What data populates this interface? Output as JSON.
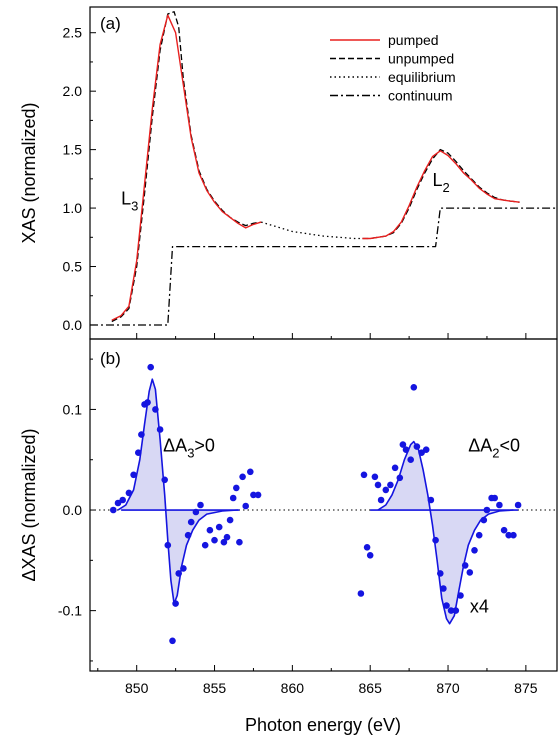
{
  "chart_data": [
    {
      "panel": "(a)",
      "type": "line",
      "xlim": [
        847,
        877
      ],
      "ylim": [
        -0.12,
        2.72
      ],
      "yticks": [
        0.0,
        0.5,
        1.0,
        1.5,
        2.0,
        2.5
      ],
      "ylabel": "XAS (normalized)",
      "legend": {
        "placement": "top-right",
        "entries": [
          {
            "label": "pumped",
            "style": "solid",
            "color": "#e8201f"
          },
          {
            "label": "unpumped",
            "style": "dashed",
            "color": "#000000"
          },
          {
            "label": "equilibrium",
            "style": "dotted",
            "color": "#000000"
          },
          {
            "label": "continuum",
            "style": "dashdot",
            "color": "#000000"
          }
        ]
      },
      "annotations": [
        {
          "base": "L",
          "sub": "3",
          "x": 849.0,
          "y": 1.03
        },
        {
          "base": "L",
          "sub": "2",
          "x": 869.0,
          "y": 1.19
        }
      ],
      "series": [
        {
          "name": "pumped",
          "style": "solid",
          "color": "#e8201f",
          "segments": [
            [
              [
                848.4,
                0.04
              ],
              [
                849.0,
                0.08
              ],
              [
                849.5,
                0.16
              ],
              [
                850.0,
                0.55
              ],
              [
                850.5,
                1.2
              ],
              [
                851.0,
                1.85
              ],
              [
                851.5,
                2.4
              ],
              [
                852.0,
                2.65
              ],
              [
                852.5,
                2.5
              ],
              [
                853.0,
                2.05
              ],
              [
                853.5,
                1.6
              ],
              [
                854.0,
                1.3
              ],
              [
                854.5,
                1.15
              ],
              [
                855.0,
                1.05
              ],
              [
                855.5,
                0.97
              ],
              [
                856.0,
                0.92
              ],
              [
                856.5,
                0.87
              ],
              [
                857.0,
                0.83
              ],
              [
                857.5,
                0.86
              ],
              [
                858.0,
                0.88
              ]
            ],
            [
              [
                864.5,
                0.74
              ],
              [
                865.0,
                0.74
              ],
              [
                866.0,
                0.76
              ],
              [
                866.5,
                0.8
              ],
              [
                867.0,
                0.88
              ],
              [
                867.5,
                1.02
              ],
              [
                868.0,
                1.18
              ],
              [
                868.5,
                1.32
              ],
              [
                869.0,
                1.44
              ],
              [
                869.5,
                1.49
              ],
              [
                870.0,
                1.45
              ],
              [
                870.5,
                1.38
              ],
              [
                871.0,
                1.3
              ],
              [
                871.5,
                1.24
              ],
              [
                872.0,
                1.17
              ],
              [
                872.5,
                1.12
              ],
              [
                873.0,
                1.08
              ],
              [
                873.5,
                1.07
              ],
              [
                874.0,
                1.06
              ],
              [
                874.6,
                1.05
              ]
            ]
          ]
        },
        {
          "name": "unpumped",
          "style": "dashed",
          "color": "#000000",
          "segments": [
            [
              [
                848.4,
                0.03
              ],
              [
                849.0,
                0.07
              ],
              [
                849.5,
                0.14
              ],
              [
                850.0,
                0.5
              ],
              [
                850.5,
                1.12
              ],
              [
                851.0,
                1.78
              ],
              [
                851.5,
                2.35
              ],
              [
                852.0,
                2.66
              ],
              [
                852.4,
                2.68
              ],
              [
                852.7,
                2.55
              ],
              [
                853.0,
                2.1
              ],
              [
                853.5,
                1.62
              ],
              [
                854.0,
                1.32
              ],
              [
                854.5,
                1.16
              ],
              [
                855.0,
                1.06
              ],
              [
                855.5,
                0.98
              ],
              [
                856.0,
                0.92
              ],
              [
                856.5,
                0.88
              ],
              [
                857.0,
                0.85
              ],
              [
                857.5,
                0.87
              ],
              [
                858.0,
                0.88
              ]
            ],
            [
              [
                864.5,
                0.74
              ],
              [
                865.0,
                0.74
              ],
              [
                866.0,
                0.76
              ],
              [
                866.5,
                0.79
              ],
              [
                867.0,
                0.87
              ],
              [
                867.5,
                1.0
              ],
              [
                868.0,
                1.16
              ],
              [
                868.5,
                1.3
              ],
              [
                869.0,
                1.42
              ],
              [
                869.5,
                1.5
              ],
              [
                870.0,
                1.47
              ],
              [
                870.5,
                1.4
              ],
              [
                871.0,
                1.32
              ],
              [
                871.5,
                1.25
              ],
              [
                872.0,
                1.18
              ],
              [
                872.5,
                1.13
              ],
              [
                873.0,
                1.09
              ],
              [
                873.5,
                1.07
              ],
              [
                874.0,
                1.06
              ],
              [
                874.6,
                1.05
              ]
            ]
          ]
        },
        {
          "name": "equilibrium",
          "style": "dotted",
          "color": "#000000",
          "segments": [
            [
              [
                858.0,
                0.88
              ],
              [
                859.0,
                0.84
              ],
              [
                860.0,
                0.8
              ],
              [
                861.0,
                0.78
              ],
              [
                862.0,
                0.76
              ],
              [
                863.0,
                0.75
              ],
              [
                864.0,
                0.74
              ],
              [
                864.5,
                0.74
              ]
            ]
          ]
        },
        {
          "name": "continuum",
          "style": "dashdot",
          "color": "#000000",
          "segments": [
            [
              [
                847.0,
                0.0
              ],
              [
                852.0,
                0.0
              ],
              [
                852.3,
                0.67
              ],
              [
                869.2,
                0.67
              ],
              [
                869.5,
                1.0
              ],
              [
                877.0,
                1.0
              ]
            ]
          ]
        }
      ]
    },
    {
      "panel": "(b)",
      "type": "scatter",
      "xlim": [
        847,
        877
      ],
      "ylim": [
        -0.16,
        0.17
      ],
      "xticks": [
        850,
        855,
        860,
        865,
        870,
        875
      ],
      "yticks": [
        -0.1,
        0.0,
        0.1
      ],
      "ytick_labels": [
        "-0.1",
        "0.0",
        "0.1"
      ],
      "xlabel": "Photon energy (eV)",
      "ylabel": "ΔXAS (normalized)",
      "annotations": [
        {
          "base": "ΔA",
          "sub": "3",
          "tail": ">0",
          "x": 851.7,
          "y": 0.058
        },
        {
          "base": "ΔA",
          "sub": "2",
          "tail": "<0",
          "x": 871.3,
          "y": 0.058
        },
        {
          "text": "x4",
          "x": 871.4,
          "y": -0.102
        }
      ],
      "zero_line": {
        "y": 0,
        "style": "dotted"
      },
      "point_color": "#1515e0",
      "fill_color": "#d8d8f4",
      "points": [
        [
          848.5,
          0.0
        ],
        [
          848.8,
          0.007
        ],
        [
          849.1,
          0.01
        ],
        [
          849.5,
          0.017
        ],
        [
          849.8,
          0.035
        ],
        [
          850.1,
          0.057
        ],
        [
          850.3,
          0.075
        ],
        [
          850.5,
          0.105
        ],
        [
          850.7,
          0.107
        ],
        [
          850.9,
          0.142
        ],
        [
          851.2,
          0.1
        ],
        [
          851.5,
          0.08
        ],
        [
          851.8,
          0.03
        ],
        [
          852.0,
          -0.035
        ],
        [
          852.3,
          -0.13
        ],
        [
          852.5,
          -0.093
        ],
        [
          852.7,
          -0.063
        ],
        [
          853.0,
          -0.058
        ],
        [
          853.3,
          -0.025
        ],
        [
          853.5,
          -0.012
        ],
        [
          853.8,
          -0.002
        ],
        [
          854.1,
          0.005
        ],
        [
          854.4,
          -0.035
        ],
        [
          854.7,
          -0.02
        ],
        [
          855.0,
          -0.03
        ],
        [
          855.3,
          -0.017
        ],
        [
          855.6,
          -0.032
        ],
        [
          855.8,
          -0.027
        ],
        [
          856.0,
          -0.01
        ],
        [
          856.2,
          0.012
        ],
        [
          856.4,
          0.022
        ],
        [
          856.6,
          -0.032
        ],
        [
          856.8,
          0.033
        ],
        [
          857.0,
          0.004
        ],
        [
          857.3,
          0.038
        ],
        [
          857.5,
          0.015
        ],
        [
          857.8,
          0.015
        ],
        [
          864.4,
          -0.083
        ],
        [
          864.6,
          0.035
        ],
        [
          864.8,
          -0.037
        ],
        [
          865.0,
          -0.045
        ],
        [
          865.3,
          0.033
        ],
        [
          865.5,
          0.025
        ],
        [
          865.7,
          0.01
        ],
        [
          866.0,
          0.02
        ],
        [
          866.3,
          0.025
        ],
        [
          866.6,
          0.042
        ],
        [
          866.9,
          0.032
        ],
        [
          867.1,
          0.065
        ],
        [
          867.3,
          0.06
        ],
        [
          867.6,
          0.05
        ],
        [
          867.8,
          0.122
        ],
        [
          868.0,
          0.063
        ],
        [
          868.3,
          0.057
        ],
        [
          868.6,
          0.06
        ],
        [
          868.9,
          0.01
        ],
        [
          869.2,
          -0.03
        ],
        [
          869.5,
          -0.063
        ],
        [
          869.7,
          -0.078
        ],
        [
          869.9,
          -0.095
        ],
        [
          870.2,
          -0.1
        ],
        [
          870.5,
          -0.1
        ],
        [
          870.8,
          -0.085
        ],
        [
          871.1,
          -0.055
        ],
        [
          871.4,
          -0.062
        ],
        [
          871.7,
          -0.04
        ],
        [
          872.0,
          -0.025
        ],
        [
          872.3,
          -0.01
        ],
        [
          872.5,
          0.0
        ],
        [
          872.8,
          0.012
        ],
        [
          873.0,
          0.012
        ],
        [
          873.3,
          0.005
        ],
        [
          873.6,
          -0.02
        ],
        [
          873.9,
          -0.025
        ],
        [
          874.2,
          -0.025
        ],
        [
          874.5,
          0.005
        ]
      ],
      "fit_segments": [
        {
          "role": "L3 fit",
          "points": [
            [
              848.8,
              0.0
            ],
            [
              849.3,
              0.005
            ],
            [
              849.8,
              0.02
            ],
            [
              850.2,
              0.05
            ],
            [
              850.5,
              0.085
            ],
            [
              850.8,
              0.118
            ],
            [
              851.0,
              0.13
            ],
            [
              851.2,
              0.12
            ],
            [
              851.5,
              0.07
            ],
            [
              851.8,
              0.015
            ],
            [
              852.0,
              -0.03
            ],
            [
              852.2,
              -0.07
            ],
            [
              852.4,
              -0.093
            ],
            [
              852.6,
              -0.085
            ],
            [
              852.9,
              -0.055
            ],
            [
              853.2,
              -0.035
            ],
            [
              853.6,
              -0.02
            ],
            [
              854.0,
              -0.01
            ],
            [
              854.5,
              -0.004
            ],
            [
              855.5,
              -0.001
            ],
            [
              856.5,
              0.0
            ]
          ]
        },
        {
          "role": "L2 fit",
          "points": [
            [
              865.5,
              0.0
            ],
            [
              866.0,
              0.005
            ],
            [
              866.4,
              0.015
            ],
            [
              866.8,
              0.03
            ],
            [
              867.2,
              0.05
            ],
            [
              867.6,
              0.065
            ],
            [
              867.8,
              0.068
            ],
            [
              868.1,
              0.06
            ],
            [
              868.4,
              0.04
            ],
            [
              868.7,
              0.015
            ],
            [
              869.0,
              -0.015
            ],
            [
              869.3,
              -0.05
            ],
            [
              869.6,
              -0.088
            ],
            [
              869.9,
              -0.108
            ],
            [
              870.1,
              -0.113
            ],
            [
              870.4,
              -0.105
            ],
            [
              870.7,
              -0.08
            ],
            [
              871.0,
              -0.055
            ],
            [
              871.3,
              -0.035
            ],
            [
              871.7,
              -0.02
            ],
            [
              872.1,
              -0.01
            ],
            [
              872.6,
              -0.004
            ],
            [
              873.3,
              -0.001
            ],
            [
              874.2,
              0.0
            ]
          ]
        }
      ],
      "baseline_segments": [
        [
          849.0,
          856.6
        ],
        [
          865.0,
          874.5
        ]
      ]
    }
  ]
}
